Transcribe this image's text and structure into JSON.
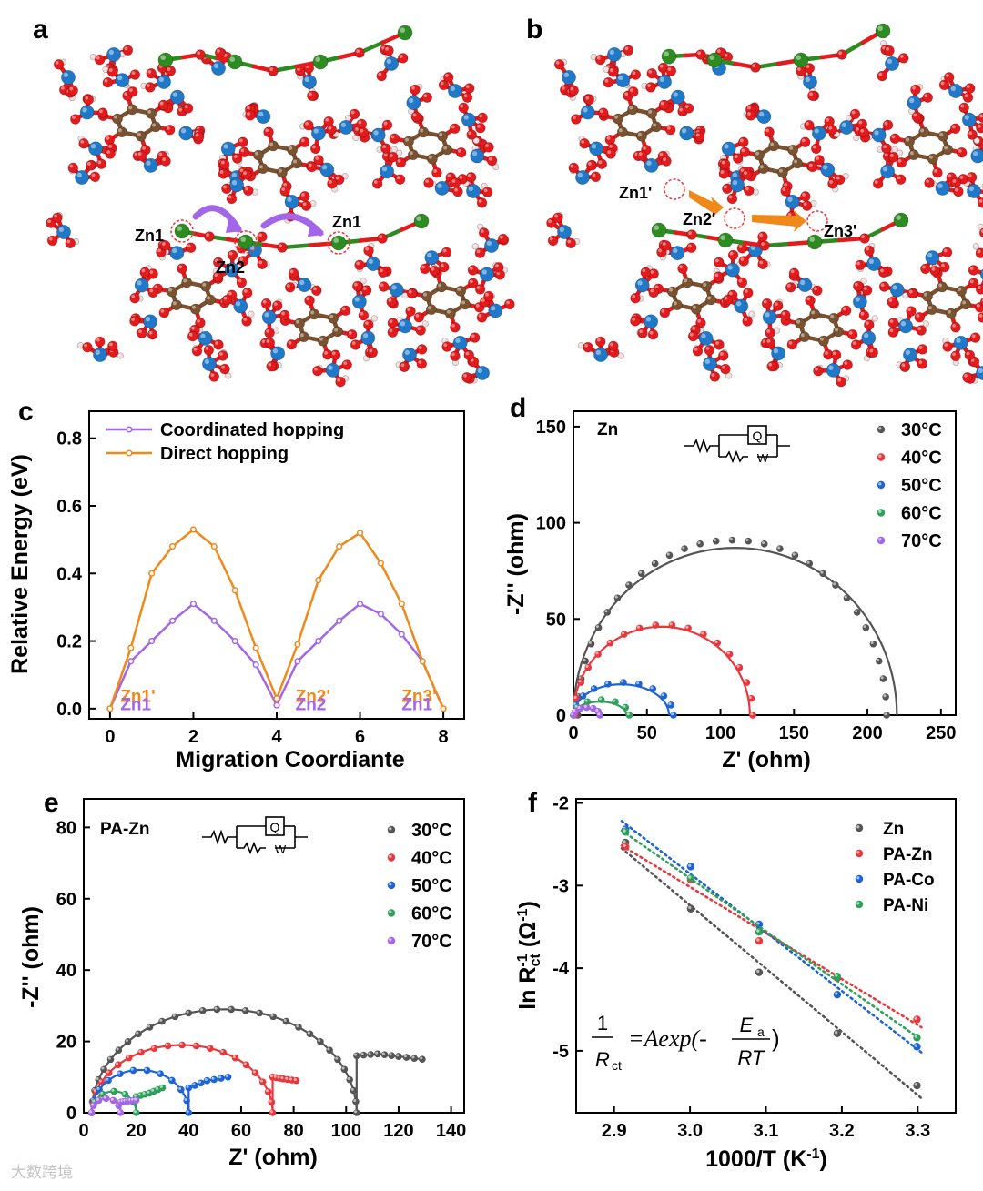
{
  "colors": {
    "O": "#e41a1c",
    "P": "#1f78c8",
    "C": "#7a5230",
    "H": "#f2dede",
    "Zn": "#2e8b22",
    "black": "#111111",
    "violet": "#a466e8",
    "orange": "#ef8a1a"
  },
  "panels": {
    "a": {
      "letter": "a",
      "zn_labels": [
        "Zn1",
        "Zn2",
        "Zn1"
      ]
    },
    "b": {
      "letter": "b",
      "zn_labels": [
        "Zn1'",
        "Zn2'",
        "Zn3'"
      ]
    },
    "c": {
      "letter": "c"
    },
    "d": {
      "letter": "d"
    },
    "e": {
      "letter": "e"
    },
    "f": {
      "letter": "f"
    }
  },
  "chart_data": [
    {
      "panel": "c",
      "type": "line",
      "xlabel": "Migration Coordiante",
      "ylabel": "Relative Energy (eV)",
      "xlim": [
        -0.5,
        8.5
      ],
      "ylim": [
        -0.03,
        0.88
      ],
      "xticks": [
        0,
        2,
        4,
        6,
        8
      ],
      "yticks": [
        0.0,
        0.2,
        0.4,
        0.6,
        0.8
      ],
      "legend_position": "top-left",
      "series": [
        {
          "name": "Coordinated hopping",
          "color": "#a466e8",
          "x": [
            0,
            0.5,
            1,
            1.5,
            2,
            2.5,
            3,
            3.5,
            4,
            4.5,
            5,
            5.5,
            6,
            6.5,
            7,
            7.5,
            8
          ],
          "y": [
            0.0,
            0.14,
            0.2,
            0.26,
            0.31,
            0.26,
            0.2,
            0.13,
            0.01,
            0.14,
            0.2,
            0.26,
            0.31,
            0.28,
            0.22,
            0.14,
            0.0
          ]
        },
        {
          "name": "Direct hopping",
          "color": "#ef8a1a",
          "x": [
            0,
            0.5,
            1,
            1.5,
            2,
            2.5,
            3,
            3.5,
            4,
            4.5,
            5,
            5.5,
            6,
            6.5,
            7,
            7.5,
            8
          ],
          "y": [
            0.0,
            0.18,
            0.4,
            0.48,
            0.53,
            0.48,
            0.35,
            0.18,
            0.03,
            0.19,
            0.38,
            0.48,
            0.52,
            0.43,
            0.31,
            0.14,
            0.0
          ]
        }
      ],
      "annotations": [
        {
          "text": "Zn1'",
          "x": 0.25,
          "y": 0.02,
          "color": "orange"
        },
        {
          "text": "Zn1",
          "x": 0.25,
          "y": -0.005,
          "color": "violet"
        },
        {
          "text": "Zn2'",
          "x": 4.45,
          "y": 0.02,
          "color": "orange"
        },
        {
          "text": "Zn2",
          "x": 4.45,
          "y": -0.005,
          "color": "violet"
        },
        {
          "text": "Zn3'",
          "x": 7.0,
          "y": 0.02,
          "color": "orange"
        },
        {
          "text": "Zn1",
          "x": 7.0,
          "y": -0.005,
          "color": "violet"
        }
      ]
    },
    {
      "panel": "d",
      "type": "scatter",
      "title": "Zn",
      "xlabel": "Z' (ohm)",
      "ylabel": "-Z'' (ohm)",
      "xlim": [
        0,
        260
      ],
      "ylim": [
        0,
        158
      ],
      "xticks": [
        0,
        50,
        100,
        150,
        200,
        250
      ],
      "yticks": [
        0,
        50,
        100,
        150
      ],
      "legend_position": "top-right",
      "circuit": {
        "labels": [
          "Q",
          "W"
        ]
      },
      "series": [
        {
          "name": "30°C",
          "color": "#555555",
          "arc": [
            3,
            0,
            213,
            91
          ],
          "fit": [
            0,
            0,
            220,
            87
          ]
        },
        {
          "name": "40°C",
          "color": "#e8383d",
          "arc": [
            1,
            0,
            122,
            47
          ],
          "fit": [
            0,
            0,
            120,
            46
          ]
        },
        {
          "name": "50°C",
          "color": "#1c63d6",
          "arc": [
            0,
            0,
            68,
            17
          ],
          "fit": [
            0,
            0,
            65,
            16
          ]
        },
        {
          "name": "60°C",
          "color": "#2ea05a",
          "arc": [
            0,
            0,
            38,
            8
          ],
          "fit": [
            0,
            0,
            36,
            7
          ]
        },
        {
          "name": "70°C",
          "color": "#a466e8",
          "arc": [
            0,
            0,
            18,
            4
          ],
          "fit": [
            0,
            0,
            17,
            3.5
          ]
        }
      ]
    },
    {
      "panel": "e",
      "type": "scatter",
      "title": "PA-Zn",
      "xlabel": "Z' (ohm)",
      "ylabel": "-Z'' (ohm)",
      "xlim": [
        0,
        145
      ],
      "ylim": [
        0,
        88
      ],
      "xticks": [
        0,
        20,
        40,
        60,
        80,
        100,
        120,
        140
      ],
      "yticks": [
        0,
        20,
        40,
        60,
        80
      ],
      "legend_position": "top-right",
      "circuit": {
        "labels": [
          "Q",
          "W"
        ]
      },
      "series": [
        {
          "name": "30°C",
          "color": "#555555",
          "arc": [
            3,
            0,
            104,
            29
          ],
          "tail": [
            [
              104,
              16
            ],
            [
              112,
              16.5
            ],
            [
              120,
              15.8
            ],
            [
              129,
              15
            ]
          ]
        },
        {
          "name": "40°C",
          "color": "#e8383d",
          "arc": [
            3,
            0,
            72,
            19
          ],
          "tail": [
            [
              72,
              10
            ],
            [
              76,
              9.5
            ],
            [
              81,
              9
            ]
          ]
        },
        {
          "name": "50°C",
          "color": "#1c63d6",
          "arc": [
            3,
            0,
            40,
            12
          ],
          "tail": [
            [
              40,
              7
            ],
            [
              47,
              9
            ],
            [
              55,
              10
            ]
          ]
        },
        {
          "name": "60°C",
          "color": "#2ea05a",
          "arc": [
            3,
            0,
            20,
            6
          ],
          "tail": [
            [
              20,
              4.5
            ],
            [
              25,
              5.5
            ],
            [
              30,
              7
            ]
          ]
        },
        {
          "name": "70°C",
          "color": "#a466e8",
          "arc": [
            3,
            0,
            14,
            4
          ],
          "tail": [
            [
              14,
              3
            ],
            [
              17,
              3.3
            ],
            [
              20,
              3.5
            ]
          ]
        }
      ]
    },
    {
      "panel": "f",
      "type": "scatter",
      "xlabel": "1000/T (K⁻¹)",
      "ylabel": "ln R⁻¹ct (Ω⁻¹)",
      "xlim": [
        2.85,
        3.35
      ],
      "ylim": [
        -5.75,
        -1.95
      ],
      "xticks": [
        2.9,
        3.0,
        3.1,
        3.2,
        3.3
      ],
      "yticks": [
        -2,
        -3,
        -4,
        -5
      ],
      "legend_position": "top-right",
      "equation": "1/Rct = Aexp(-Ea/RT)",
      "x": [
        2.915,
        3.001,
        3.091,
        3.194,
        3.299
      ],
      "series": [
        {
          "name": "Zn",
          "color": "#555555",
          "y": [
            -2.48,
            -3.28,
            -4.05,
            -4.79,
            -5.42
          ]
        },
        {
          "name": "PA-Zn",
          "color": "#e8383d",
          "y": [
            -2.53,
            -2.93,
            -3.67,
            -4.12,
            -4.62
          ]
        },
        {
          "name": "PA-Co",
          "color": "#1c63d6",
          "y": [
            -2.32,
            -2.77,
            -3.47,
            -4.32,
            -4.95
          ]
        },
        {
          "name": "PA-Ni",
          "color": "#2ea05a",
          "y": [
            -2.35,
            -2.91,
            -3.56,
            -4.1,
            -4.84
          ]
        }
      ]
    }
  ],
  "watermark": "大数跨境"
}
